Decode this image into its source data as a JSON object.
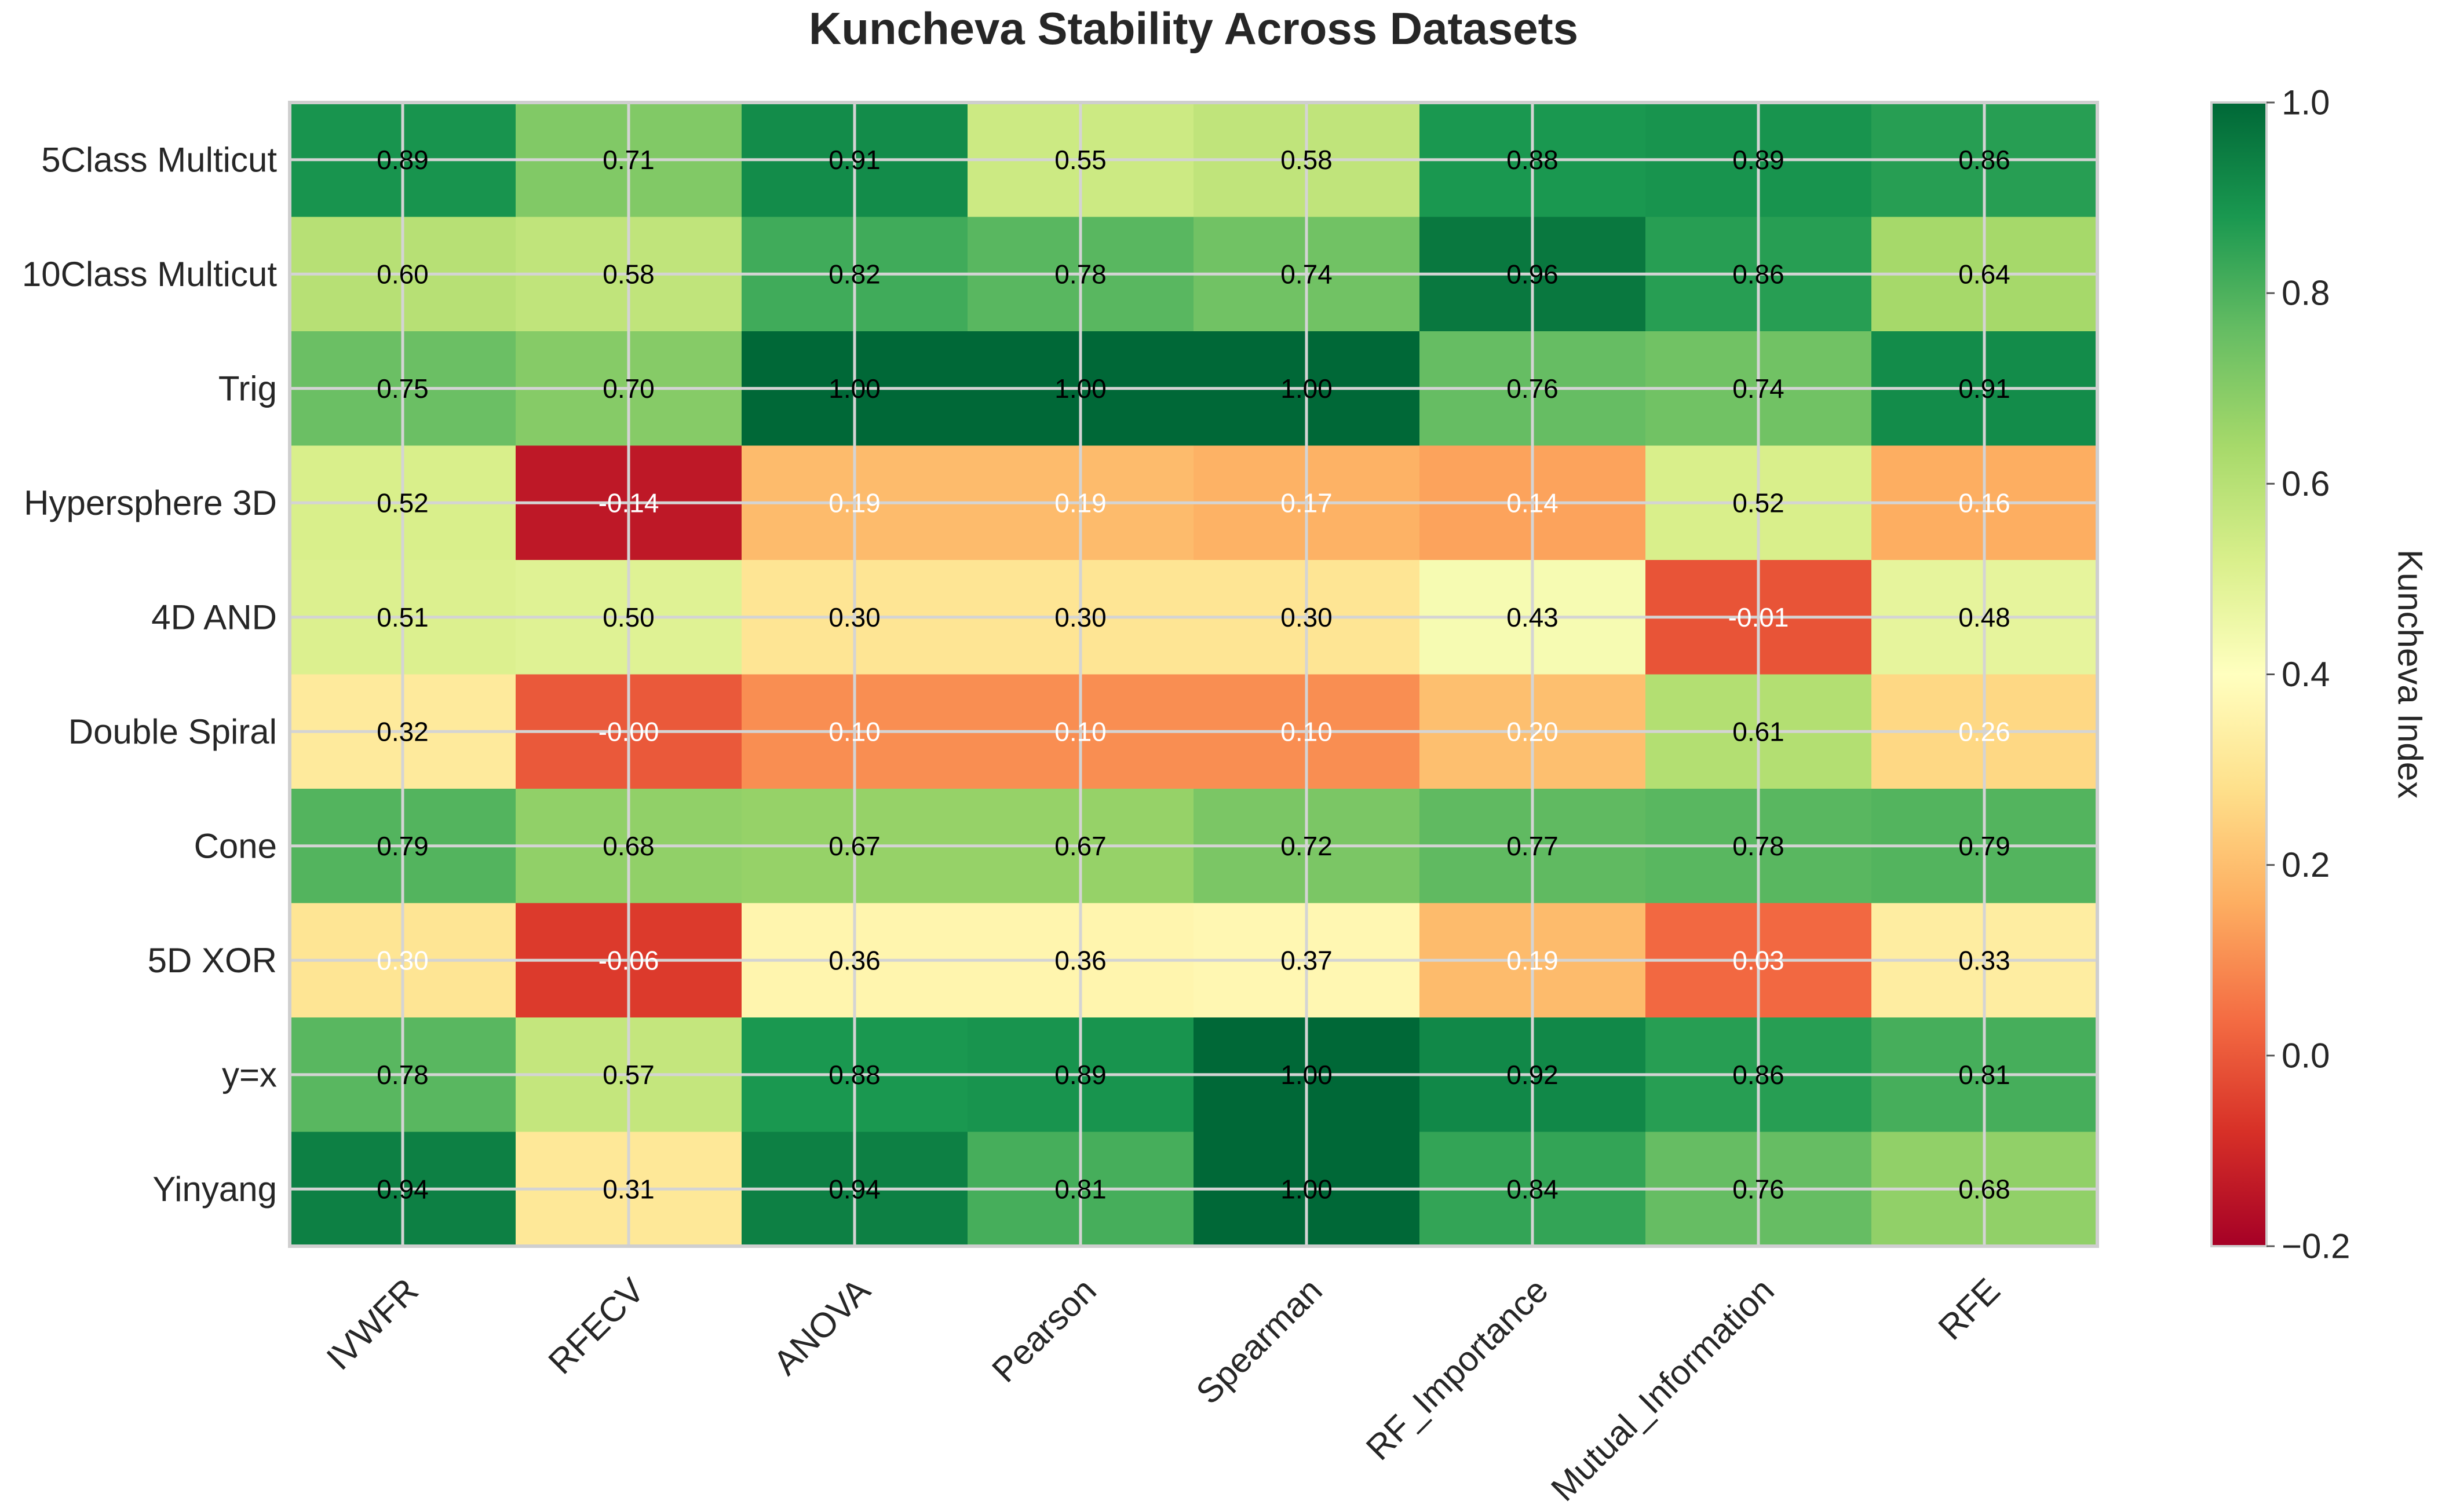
{
  "chart_data": {
    "type": "heatmap",
    "title": "Kuncheva Stability Across Datasets",
    "xlabel": "",
    "ylabel": "",
    "colorbar_label": "Kuncheva Index",
    "colormap": "RdYlGn",
    "vmin": -0.2,
    "vmax": 1.0,
    "colorbar_ticks": [
      {
        "value": 1.0,
        "label": "1.0"
      },
      {
        "value": 0.8,
        "label": "0.8"
      },
      {
        "value": 0.6,
        "label": "0.6"
      },
      {
        "value": 0.4,
        "label": "0.4"
      },
      {
        "value": 0.2,
        "label": "0.2"
      },
      {
        "value": 0.0,
        "label": "0.0"
      },
      {
        "value": -0.2,
        "label": "−0.2"
      }
    ],
    "x_categories": [
      "IVWFR",
      "RFECV",
      "ANOVA",
      "Pearson",
      "Spearman",
      "RF_Importance",
      "Mutual_Information",
      "RFE"
    ],
    "y_categories": [
      "5Class Multicut",
      "10Class Multicut",
      "Trig",
      "Hypersphere 3D",
      "4D AND",
      "Double Spiral",
      "Cone",
      "5D XOR",
      "y=x",
      "Yinyang"
    ],
    "values": [
      [
        0.89,
        0.71,
        0.91,
        0.55,
        0.58,
        0.88,
        0.89,
        0.86
      ],
      [
        0.6,
        0.58,
        0.82,
        0.78,
        0.74,
        0.96,
        0.86,
        0.64
      ],
      [
        0.75,
        0.7,
        1.0,
        1.0,
        1.0,
        0.76,
        0.74,
        0.91
      ],
      [
        0.52,
        -0.14,
        0.19,
        0.19,
        0.17,
        0.14,
        0.52,
        0.16
      ],
      [
        0.51,
        0.5,
        0.3,
        0.3,
        0.3,
        0.43,
        -0.01,
        0.48
      ],
      [
        0.32,
        -0.0,
        0.1,
        0.1,
        0.1,
        0.2,
        0.61,
        0.26
      ],
      [
        0.79,
        0.68,
        0.67,
        0.67,
        0.72,
        0.77,
        0.78,
        0.79
      ],
      [
        0.3,
        -0.06,
        0.36,
        0.36,
        0.37,
        0.19,
        0.03,
        0.33
      ],
      [
        0.78,
        0.57,
        0.88,
        0.89,
        1.0,
        0.92,
        0.86,
        0.81
      ],
      [
        0.94,
        0.31,
        0.94,
        0.81,
        1.0,
        0.84,
        0.76,
        0.68
      ]
    ],
    "cell_labels": [
      [
        "0.89",
        "0.71",
        "0.91",
        "0.55",
        "0.58",
        "0.88",
        "0.89",
        "0.86"
      ],
      [
        "0.60",
        "0.58",
        "0.82",
        "0.78",
        "0.74",
        "0.96",
        "0.86",
        "0.64"
      ],
      [
        "0.75",
        "0.70",
        "1.00",
        "1.00",
        "1.00",
        "0.76",
        "0.74",
        "0.91"
      ],
      [
        "0.52",
        "-0.14",
        "0.19",
        "0.19",
        "0.17",
        "0.14",
        "0.52",
        "0.16"
      ],
      [
        "0.51",
        "0.50",
        "0.30",
        "0.30",
        "0.30",
        "0.43",
        "-0.01",
        "0.48"
      ],
      [
        "0.32",
        "-0.00",
        "0.10",
        "0.10",
        "0.10",
        "0.20",
        "0.61",
        "0.26"
      ],
      [
        "0.79",
        "0.68",
        "0.67",
        "0.67",
        "0.72",
        "0.77",
        "0.78",
        "0.79"
      ],
      [
        "0.30",
        "-0.06",
        "0.36",
        "0.36",
        "0.37",
        "0.19",
        "0.03",
        "0.33"
      ],
      [
        "0.78",
        "0.57",
        "0.88",
        "0.89",
        "1.00",
        "0.92",
        "0.86",
        "0.81"
      ],
      [
        "0.94",
        "0.31",
        "0.94",
        "0.81",
        "1.00",
        "0.84",
        "0.76",
        "0.68"
      ]
    ],
    "label_colors": [
      [
        "black",
        "black",
        "black",
        "black",
        "black",
        "black",
        "black",
        "black"
      ],
      [
        "black",
        "black",
        "black",
        "black",
        "black",
        "black",
        "black",
        "black"
      ],
      [
        "black",
        "black",
        "black",
        "black",
        "black",
        "black",
        "black",
        "black"
      ],
      [
        "black",
        "white",
        "white",
        "white",
        "white",
        "white",
        "black",
        "white"
      ],
      [
        "black",
        "black",
        "black",
        "black",
        "black",
        "black",
        "white",
        "black"
      ],
      [
        "black",
        "white",
        "white",
        "white",
        "white",
        "white",
        "black",
        "white"
      ],
      [
        "black",
        "black",
        "black",
        "black",
        "black",
        "black",
        "black",
        "black"
      ],
      [
        "white",
        "white",
        "black",
        "black",
        "black",
        "white",
        "white",
        "black"
      ],
      [
        "black",
        "black",
        "black",
        "black",
        "black",
        "black",
        "black",
        "black"
      ],
      [
        "black",
        "black",
        "black",
        "black",
        "black",
        "black",
        "black",
        "black"
      ]
    ],
    "grid": true
  }
}
